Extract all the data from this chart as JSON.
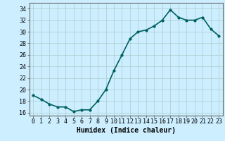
{
  "x": [
    0,
    1,
    2,
    3,
    4,
    5,
    6,
    7,
    8,
    9,
    10,
    11,
    12,
    13,
    14,
    15,
    16,
    17,
    18,
    19,
    20,
    21,
    22,
    23
  ],
  "y": [
    19.0,
    18.3,
    17.5,
    17.0,
    17.0,
    16.2,
    16.5,
    16.5,
    18.0,
    20.0,
    23.3,
    26.0,
    28.8,
    30.0,
    30.3,
    31.0,
    32.0,
    33.8,
    32.5,
    32.0,
    32.0,
    32.5,
    30.5,
    29.3
  ],
  "line_color": "#006060",
  "marker": "o",
  "marker_size": 2,
  "bg_color": "#cceeff",
  "grid_color": "#aacccc",
  "xlabel": "Humidex (Indice chaleur)",
  "ylim": [
    15.5,
    35
  ],
  "xlim": [
    -0.5,
    23.5
  ],
  "yticks": [
    16,
    18,
    20,
    22,
    24,
    26,
    28,
    30,
    32,
    34
  ],
  "xticks": [
    0,
    1,
    2,
    3,
    4,
    5,
    6,
    7,
    8,
    9,
    10,
    11,
    12,
    13,
    14,
    15,
    16,
    17,
    18,
    19,
    20,
    21,
    22,
    23
  ],
  "xlabel_fontsize": 7,
  "tick_fontsize": 6,
  "line_width": 1.2
}
